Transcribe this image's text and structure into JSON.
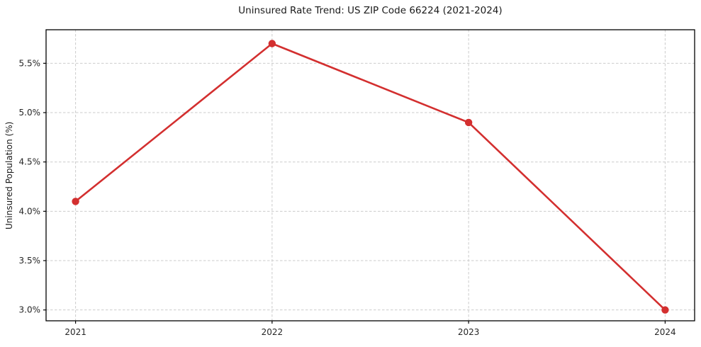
{
  "figure": {
    "background": "#ffffff",
    "text_color": "#1a1a1a",
    "tick_label_color": "#262626"
  },
  "chart_data": {
    "type": "line",
    "title": "Uninsured Rate Trend: US ZIP Code 66224 (2021-2024)",
    "xlabel": "",
    "ylabel": "Uninsured Population (%)",
    "x": [
      2021,
      2022,
      2023,
      2024
    ],
    "series": [
      {
        "name": "uninsured-rate",
        "values": [
          4.1,
          5.7,
          4.9,
          3.0
        ],
        "color": "#d32f2f",
        "marker": "circle",
        "line_width": 2.6,
        "marker_radius": 5.2
      }
    ],
    "xticks": [
      2021,
      2022,
      2023,
      2024
    ],
    "xtick_labels": [
      "2021",
      "2022",
      "2023",
      "2024"
    ],
    "yticks": [
      3.0,
      3.5,
      4.0,
      4.5,
      5.0,
      5.5
    ],
    "ytick_labels": [
      "3.0%",
      "3.5%",
      "4.0%",
      "4.5%",
      "5.0%",
      "5.5%"
    ],
    "xlim": [
      2020.85,
      2024.15
    ],
    "ylim": [
      2.89,
      5.84
    ],
    "grid": true,
    "grid_style": "dashed",
    "grid_color": "#cbcbcb",
    "axis_color": "#000000",
    "legend": "none"
  }
}
